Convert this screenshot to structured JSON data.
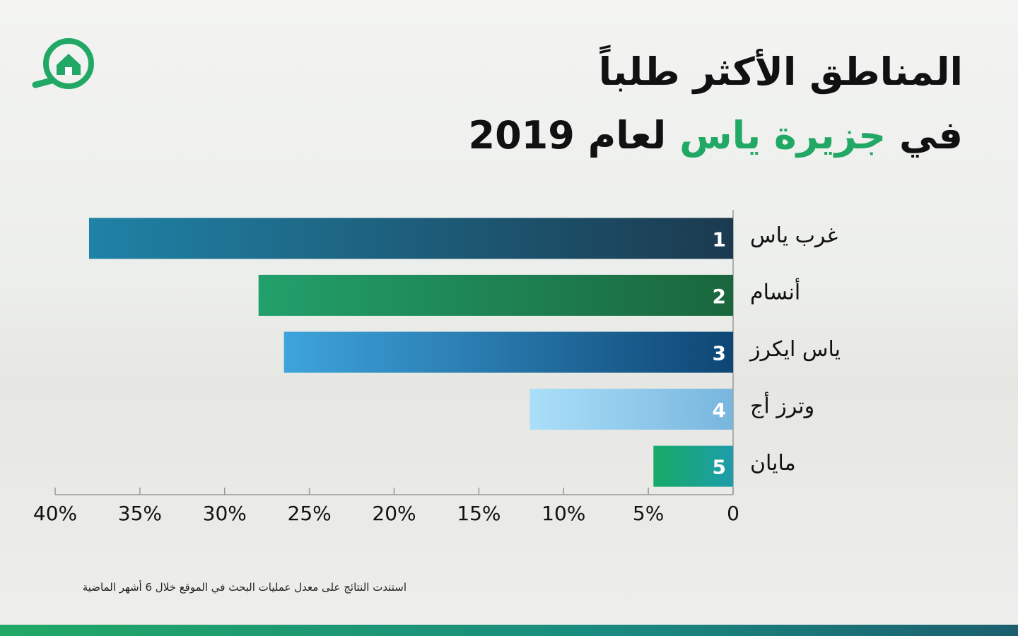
{
  "chart_data": {
    "type": "barh",
    "title": "المناطق الأكثر طلباً",
    "subtitle": [
      "في",
      "جزيرة ياس",
      "لعام 2019"
    ],
    "highlight_color": "#21a865",
    "categories": [
      "غرب ياس",
      "أنسام",
      "ياس ايكرز",
      "وترز أج",
      "مايان"
    ],
    "values": [
      38,
      28,
      26.5,
      12,
      4.7
    ],
    "ranks": [
      1,
      2,
      3,
      4,
      5
    ],
    "colors": [
      [
        "#1f82a6",
        "#1b3a4f"
      ],
      [
        "#22a06b",
        "#1a663c"
      ],
      [
        "#3ea4dc",
        "#0e4674"
      ],
      [
        "#aadff9",
        "#78b6de"
      ],
      [
        "#17ab68",
        "#1e9caa"
      ]
    ],
    "xlim": [
      0,
      40
    ],
    "xticks": [
      0,
      {
        "value": 5,
        "label": "5%"
      },
      {
        "value": 10,
        "label": "10%"
      },
      {
        "value": 15,
        "label": "15%"
      },
      {
        "value": 20,
        "label": "20%"
      },
      {
        "value": 25,
        "label": "25%"
      },
      {
        "value": 30,
        "label": "30%"
      },
      {
        "value": 35,
        "label": "35%"
      },
      {
        "value": 40,
        "label": "40%"
      }
    ],
    "x_reversed": true,
    "footnote": "استندت النتائج على معدل عمليات البحث في الموقع خلال 6 أشهر الماضية"
  }
}
